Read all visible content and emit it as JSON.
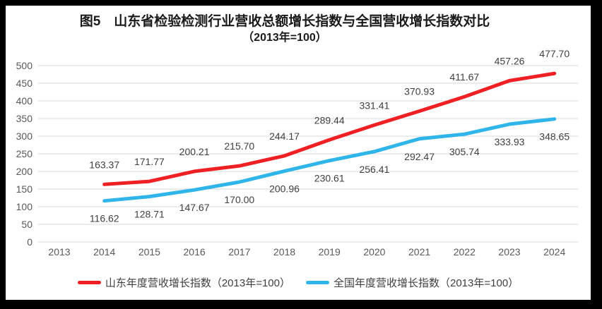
{
  "frame": {
    "background": "#000000",
    "panel_background": "#ffffff"
  },
  "chart_data": {
    "type": "line",
    "title": "图5　山东省检验检测行业营收总额增长指数与全国营收增长指数对比",
    "subtitle": "（2013年=100）",
    "categories": [
      "2013",
      "2014",
      "2015",
      "2016",
      "2017",
      "2018",
      "2019",
      "2020",
      "2021",
      "2022",
      "2023",
      "2024"
    ],
    "series": [
      {
        "name": "山东年度营收增长指数（2013年=100）",
        "color": "#ee2024",
        "label_position": "above",
        "values": [
          null,
          163.37,
          171.77,
          200.21,
          215.7,
          244.17,
          289.44,
          331.41,
          370.93,
          411.67,
          457.26,
          477.7
        ]
      },
      {
        "name": "全国年度营收增长指数（2013年=100）",
        "color": "#2fb5ea",
        "label_position": "below",
        "values": [
          null,
          116.62,
          128.71,
          147.67,
          170.0,
          200.96,
          230.61,
          256.41,
          292.47,
          305.74,
          333.93,
          348.65
        ]
      }
    ],
    "ylim": [
      0,
      500
    ],
    "ytick_step": 50,
    "xlabel": "",
    "ylabel": "",
    "grid": "horizontal",
    "legend_position": "bottom",
    "gridline_color": "#d9d9d9",
    "axis_tick_color": "#595959",
    "data_label_color": "#404040"
  }
}
